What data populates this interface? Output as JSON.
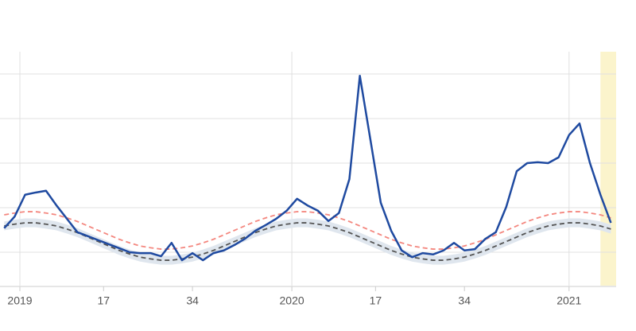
{
  "chart_data": {
    "type": "line",
    "x": [
      -3,
      -1,
      1,
      3,
      5,
      7,
      9,
      11,
      13,
      15,
      17,
      19,
      21,
      23,
      25,
      27,
      29,
      31,
      33,
      35,
      37,
      39,
      41,
      43,
      45,
      47,
      49,
      51,
      53,
      55,
      57,
      59,
      61,
      63,
      65,
      67,
      69,
      71,
      73,
      75,
      77,
      79,
      81,
      83,
      85,
      87,
      89,
      91,
      93,
      95,
      97,
      99,
      101,
      103,
      105,
      107,
      109,
      111,
      113
    ],
    "xlim": [
      -3.8,
      114
    ],
    "xticks": [
      {
        "value": 0,
        "label": "2019"
      },
      {
        "value": 16,
        "label": "17"
      },
      {
        "value": 33,
        "label": "34"
      },
      {
        "value": 52,
        "label": "2020"
      },
      {
        "value": 68,
        "label": "17"
      },
      {
        "value": 85,
        "label": "34"
      },
      {
        "value": 105,
        "label": "2021"
      }
    ],
    "xgrid": [
      0,
      52,
      105
    ],
    "ylim": [
      0.25,
      5.5
    ],
    "yticks": [
      1,
      2,
      3,
      4,
      5
    ],
    "grid": true,
    "shaded_x": [
      111,
      114
    ],
    "shaded_color": "#fbf4cc",
    "series": [
      {
        "kind": "band",
        "color": "#dfe6ee",
        "values": [
          1.69,
          1.73,
          1.76,
          1.76,
          1.73,
          1.69,
          1.62,
          1.54,
          1.44,
          1.34,
          1.24,
          1.14,
          1.06,
          0.99,
          0.95,
          0.92,
          0.92,
          0.95,
          0.99,
          1.06,
          1.14,
          1.24,
          1.34,
          1.44,
          1.54,
          1.62,
          1.69,
          1.73,
          1.76,
          1.76,
          1.73,
          1.69,
          1.62,
          1.54,
          1.44,
          1.34,
          1.24,
          1.14,
          1.06,
          0.99,
          0.95,
          0.92,
          0.92,
          0.95,
          0.99,
          1.06,
          1.14,
          1.24,
          1.34,
          1.44,
          1.54,
          1.62,
          1.69,
          1.73,
          1.76,
          1.76,
          1.73,
          1.69,
          1.62
        ],
        "lower": [
          1.49,
          1.53,
          1.56,
          1.56,
          1.53,
          1.49,
          1.42,
          1.34,
          1.24,
          1.14,
          1.04,
          0.94,
          0.86,
          0.79,
          0.75,
          0.72,
          0.72,
          0.75,
          0.79,
          0.86,
          0.94,
          1.04,
          1.14,
          1.24,
          1.34,
          1.42,
          1.49,
          1.53,
          1.56,
          1.56,
          1.53,
          1.49,
          1.42,
          1.34,
          1.24,
          1.14,
          1.04,
          0.94,
          0.86,
          0.79,
          0.75,
          0.72,
          0.72,
          0.75,
          0.79,
          0.86,
          0.94,
          1.04,
          1.14,
          1.24,
          1.34,
          1.42,
          1.49,
          1.53,
          1.56,
          1.56,
          1.53,
          1.49,
          1.42
        ]
      },
      {
        "kind": "dashed",
        "color": "#f4877f",
        "values": [
          1.84,
          1.88,
          1.91,
          1.91,
          1.88,
          1.84,
          1.77,
          1.69,
          1.59,
          1.49,
          1.39,
          1.29,
          1.21,
          1.14,
          1.1,
          1.07,
          1.07,
          1.1,
          1.14,
          1.21,
          1.29,
          1.39,
          1.49,
          1.59,
          1.69,
          1.77,
          1.84,
          1.88,
          1.91,
          1.91,
          1.88,
          1.84,
          1.77,
          1.69,
          1.59,
          1.49,
          1.39,
          1.29,
          1.21,
          1.14,
          1.1,
          1.07,
          1.07,
          1.1,
          1.14,
          1.21,
          1.29,
          1.39,
          1.49,
          1.59,
          1.69,
          1.77,
          1.84,
          1.88,
          1.91,
          1.91,
          1.88,
          1.84,
          1.77
        ]
      },
      {
        "kind": "dashed",
        "color": "#555555",
        "values": [
          1.59,
          1.63,
          1.66,
          1.66,
          1.63,
          1.59,
          1.52,
          1.44,
          1.34,
          1.24,
          1.14,
          1.04,
          0.96,
          0.89,
          0.85,
          0.82,
          0.82,
          0.85,
          0.89,
          0.96,
          1.04,
          1.14,
          1.24,
          1.34,
          1.44,
          1.52,
          1.59,
          1.63,
          1.66,
          1.66,
          1.63,
          1.59,
          1.52,
          1.44,
          1.34,
          1.24,
          1.14,
          1.04,
          0.96,
          0.89,
          0.85,
          0.82,
          0.82,
          0.85,
          0.89,
          0.96,
          1.04,
          1.14,
          1.24,
          1.34,
          1.44,
          1.52,
          1.59,
          1.63,
          1.66,
          1.66,
          1.63,
          1.59,
          1.52
        ]
      },
      {
        "kind": "solid",
        "color": "#1f4aa0",
        "values": [
          1.54,
          1.8,
          2.29,
          2.34,
          2.38,
          2.05,
          1.75,
          1.45,
          1.36,
          1.27,
          1.18,
          1.09,
          1.0,
          0.98,
          0.98,
          0.91,
          1.21,
          0.82,
          0.98,
          0.82,
          0.98,
          1.04,
          1.16,
          1.3,
          1.48,
          1.61,
          1.75,
          1.93,
          2.2,
          2.05,
          1.93,
          1.7,
          1.88,
          2.64,
          4.96,
          3.54,
          2.11,
          1.48,
          1.04,
          0.89,
          0.98,
          0.95,
          1.04,
          1.21,
          1.04,
          1.07,
          1.3,
          1.45,
          2.02,
          2.82,
          3.0,
          3.02,
          3.0,
          3.13,
          3.63,
          3.89,
          3.0,
          2.29,
          1.66
        ]
      }
    ]
  }
}
